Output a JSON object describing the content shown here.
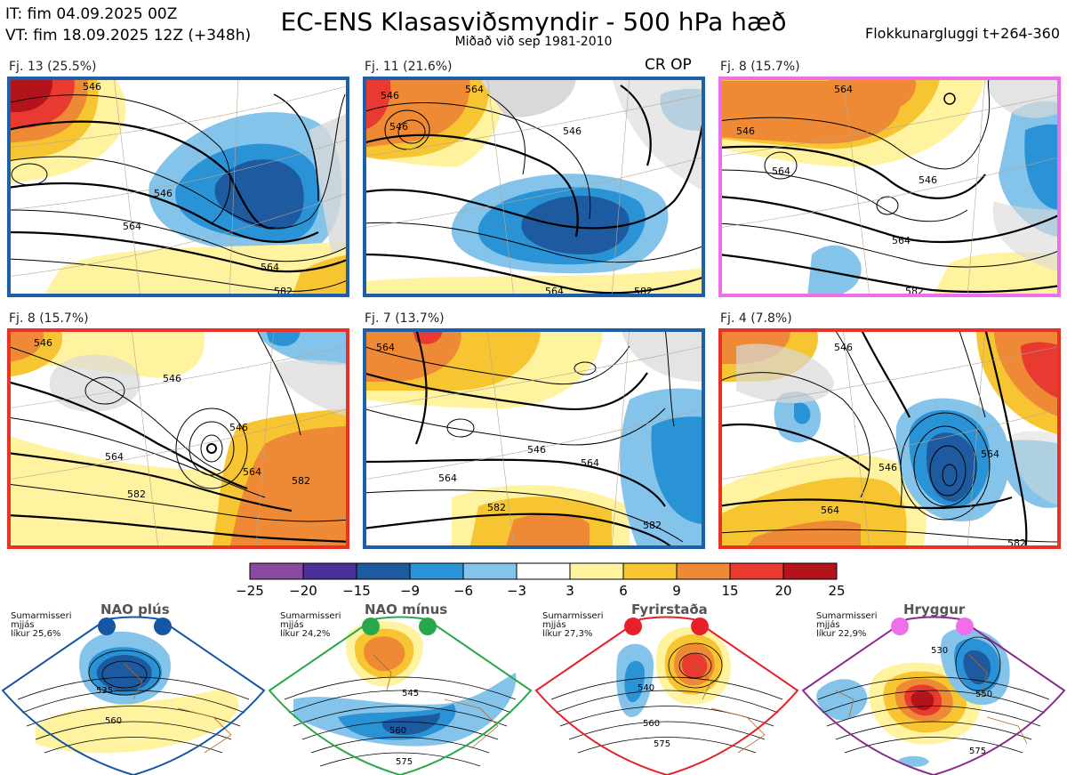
{
  "header": {
    "init_time": "IT: fim 04.09.2025 00Z",
    "valid_time": "VT: fim 18.09.2025 12Z  (+348h)",
    "title": "EC-ENS Klasasviðsmyndir - 500 hPa hæð",
    "subtitle": "Miðað við sep 1981-2010",
    "window": "Flokkunargluggi t+264-360"
  },
  "op_marker": "CR OP",
  "panels": [
    {
      "label": "Fj. 13 (25.5%)",
      "regime": "NAO plús",
      "frame_color": "#1f5fa8",
      "contours": [
        "546",
        "564",
        "546",
        "564",
        "582"
      ]
    },
    {
      "label": "Fj. 11 (21.6%)",
      "regime": "NAO plús",
      "frame_color": "#1f5fa8",
      "contours": [
        "546",
        "546",
        "564",
        "546",
        "582",
        "564"
      ]
    },
    {
      "label": "Fj. 8 (15.7%)",
      "regime": "Hryggur",
      "frame_color": "#ec6ee8",
      "contours": [
        "564",
        "546",
        "564",
        "546",
        "564",
        "582"
      ]
    },
    {
      "label": "Fj. 8 (15.7%)",
      "regime": "Fyrirstaða",
      "frame_color": "#e83228",
      "contours": [
        "546",
        "546",
        "564",
        "546",
        "564",
        "582",
        "582"
      ]
    },
    {
      "label": "Fj. 7 (13.7%)",
      "regime": "NAO plús",
      "frame_color": "#1f5fa8",
      "contours": [
        "564",
        "546",
        "564",
        "564",
        "582",
        "582"
      ]
    },
    {
      "label": "Fj. 4 (7.8%)",
      "regime": "Fyrirstaða",
      "frame_color": "#e83228",
      "contours": [
        "546",
        "546",
        "564",
        "564",
        "582"
      ]
    }
  ],
  "colorbar": {
    "ticks": [
      "−25",
      "−20",
      "−15",
      "−9",
      "−6",
      "−3",
      "3",
      "6",
      "9",
      "15",
      "20",
      "25"
    ],
    "colors": [
      "#8a4a9e",
      "#4b2f9a",
      "#1e5aa0",
      "#2a93d5",
      "#85c4ea",
      "#ffffff",
      "#fff3a0",
      "#f7c531",
      "#ee8a35",
      "#e83a30",
      "#b3141c"
    ]
  },
  "regimes": [
    {
      "name": "NAO plús",
      "season": "Sumarmisseri",
      "quality": "mjjás",
      "probability": "líkur 25,6%",
      "dot_color": "#1557a5",
      "frame_color": "#1557a5",
      "contours": [
        "535",
        "560"
      ]
    },
    {
      "name": "NAO mínus",
      "season": "Sumarmisseri",
      "quality": "mjjás",
      "probability": "líkur 24,2%",
      "dot_color": "#27a84a",
      "frame_color": "#27a84a",
      "contours": [
        "545",
        "560",
        "575"
      ]
    },
    {
      "name": "Fyrirstaða",
      "season": "Sumarmisseri",
      "quality": "mjjás",
      "probability": "líkur 27,3%",
      "dot_color": "#e8202a",
      "frame_color": "#e8202a",
      "contours": [
        "540",
        "560",
        "575"
      ]
    },
    {
      "name": "Hryggur",
      "season": "Sumarmisseri",
      "quality": "mjjás",
      "probability": "líkur 22,9%",
      "dot_color": "#ef6ee9",
      "frame_color": "#8a2a8e",
      "contours": [
        "530",
        "550",
        "575"
      ]
    }
  ]
}
